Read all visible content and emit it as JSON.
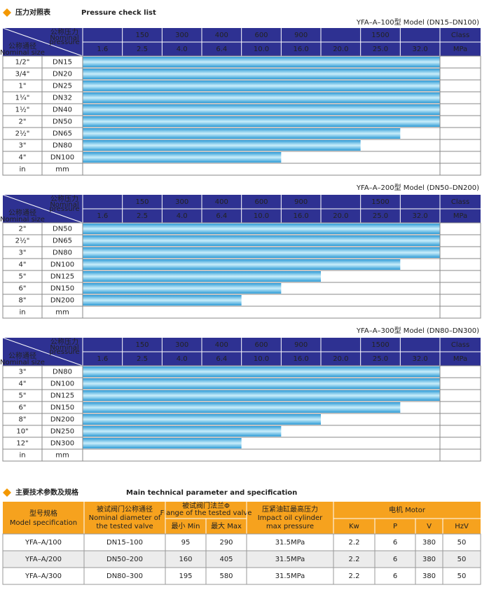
{
  "pressure_section": {
    "title_cn": "压力对照表",
    "title_en": "Pressure check list",
    "header": {
      "pressure_cn": "公称压力",
      "pressure_en": [
        "Nominal",
        "pressure"
      ],
      "size_cn": "公称通径",
      "size_en": "Nominal size",
      "class_label": "Class",
      "mpa_label": "MPa",
      "classes": [
        null,
        150,
        300,
        400,
        600,
        900,
        null,
        1500,
        null
      ],
      "mpa": [
        "1.6",
        "2.5",
        "4.0",
        "6.4",
        "10.0",
        "16.0",
        "20.0",
        "25.0",
        "32.0"
      ],
      "unit_row": [
        "in",
        "mm"
      ]
    },
    "tables": [
      {
        "model": "YFA–A–100型  Model (DN15–DN100)",
        "rows": [
          {
            "inch": "1/2\"",
            "dn": "DN15",
            "max_mpa": 32
          },
          {
            "inch": "3/4\"",
            "dn": "DN20",
            "max_mpa": 32
          },
          {
            "inch": "1\"",
            "dn": "DN25",
            "max_mpa": 32
          },
          {
            "inch": "1¼\"",
            "dn": "DN32",
            "max_mpa": 32
          },
          {
            "inch": "1½\"",
            "dn": "DN40",
            "max_mpa": 32
          },
          {
            "inch": "2\"",
            "dn": "DN50",
            "max_mpa": 32
          },
          {
            "inch": "2½\"",
            "dn": "DN65",
            "max_mpa": 25
          },
          {
            "inch": "3\"",
            "dn": "DN80",
            "max_mpa": 20
          },
          {
            "inch": "4\"",
            "dn": "DN100",
            "max_mpa": 10
          }
        ]
      },
      {
        "model": "YFA–A–200型  Model (DN50–DN200)",
        "rows": [
          {
            "inch": "2\"",
            "dn": "DN50",
            "max_mpa": 32
          },
          {
            "inch": "2½\"",
            "dn": "DN65",
            "max_mpa": 32
          },
          {
            "inch": "3\"",
            "dn": "DN80",
            "max_mpa": 32
          },
          {
            "inch": "4\"",
            "dn": "DN100",
            "max_mpa": 25
          },
          {
            "inch": "5\"",
            "dn": "DN125",
            "max_mpa": 16
          },
          {
            "inch": "6\"",
            "dn": "DN150",
            "max_mpa": 10
          },
          {
            "inch": "8\"",
            "dn": "DN200",
            "max_mpa": 6.4
          }
        ]
      },
      {
        "model": "YFA–A–300型  Model (DN80–DN300)",
        "rows": [
          {
            "inch": "3\"",
            "dn": "DN80",
            "max_mpa": 32
          },
          {
            "inch": "4\"",
            "dn": "DN100",
            "max_mpa": 32
          },
          {
            "inch": "5\"",
            "dn": "DN125",
            "max_mpa": 32
          },
          {
            "inch": "6\"",
            "dn": "DN150",
            "max_mpa": 25
          },
          {
            "inch": "8\"",
            "dn": "DN200",
            "max_mpa": 16
          },
          {
            "inch": "10\"",
            "dn": "DN250",
            "max_mpa": 10
          },
          {
            "inch": "12\"",
            "dn": "DN300",
            "max_mpa": 6.4
          }
        ]
      }
    ]
  },
  "spec_section": {
    "title_cn": "主要技术参数及规格",
    "title_en": "Main technical parameter and specification",
    "header": {
      "model_cn": "型号规格",
      "model_en": "Model specification",
      "diameter_cn": "被试阀门公称通径",
      "diameter_en": [
        "Nominal diameter of",
        "the tested valve"
      ],
      "flange_cn": "被试阀门法兰Φ",
      "flange_en": "Flange of the tested valve",
      "min": "最小 Min",
      "max": "最大 Max",
      "pressure_cn": "压紧油缸最高压力",
      "pressure_en": [
        "Impact oil cylinder",
        "max pressure"
      ],
      "motor": "电机  Motor",
      "motor_cols": [
        "Kw",
        "P",
        "V",
        "HzV"
      ]
    },
    "rows": [
      [
        "YFA–A/100",
        "DN15–100",
        "95",
        "290",
        "31.5MPa",
        "2.2",
        "6",
        "380",
        "50"
      ],
      [
        "YFA–A/200",
        "DN50–200",
        "160",
        "405",
        "31.5MPa",
        "2.2",
        "6",
        "380",
        "50"
      ],
      [
        "YFA–A/300",
        "DN80–300",
        "195",
        "580",
        "31.5MPa",
        "2.2",
        "6",
        "380",
        "50"
      ]
    ]
  }
}
